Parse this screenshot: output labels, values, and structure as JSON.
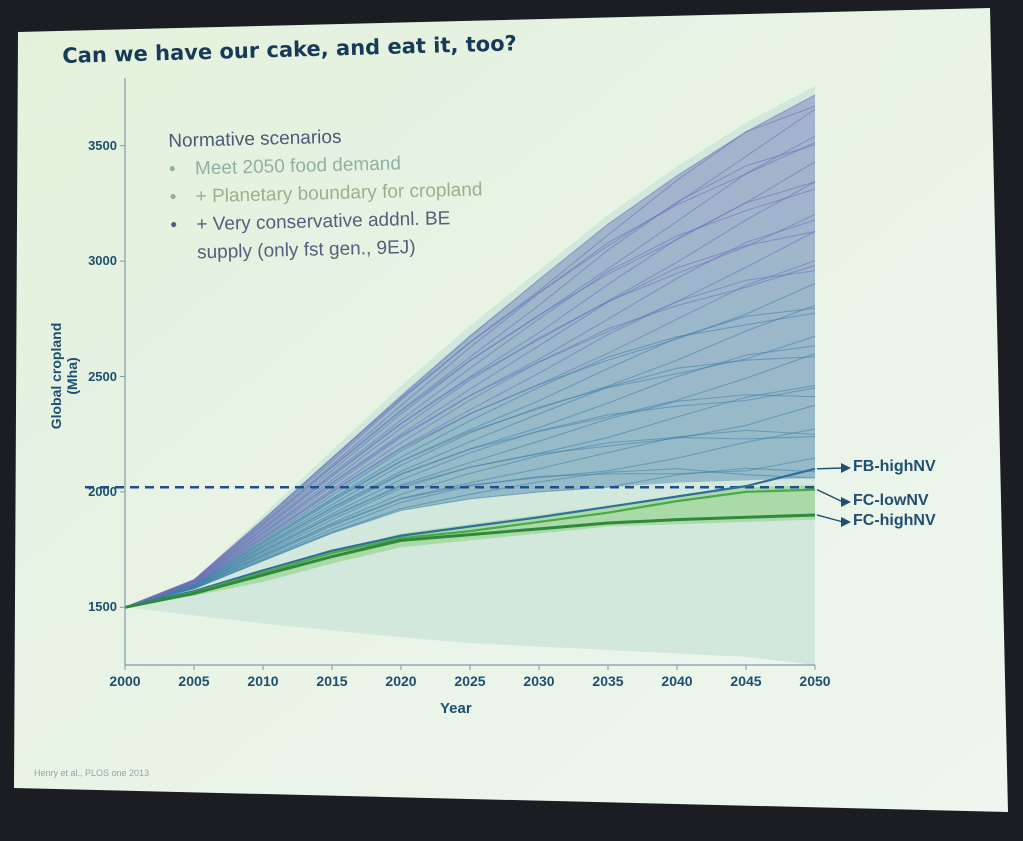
{
  "slide": {
    "title": "Can we have our cake, and eat it, too?",
    "citation": "Henry et al., PLOS one 2013"
  },
  "legend": {
    "heading": "Normative scenarios",
    "items": [
      {
        "bullet": "•",
        "text": "Meet 2050 food demand"
      },
      {
        "bullet": "•",
        "text": "+ Planetary boundary for cropland"
      },
      {
        "bullet": "•",
        "text": "+ Very conservative addnl. BE"
      }
    ],
    "continuation": "supply (only fst gen., 9EJ)"
  },
  "chart_data": {
    "type": "line",
    "xlabel": "Year",
    "ylabel": "Global cropland (Mha)",
    "xlim": [
      2000,
      2050
    ],
    "ylim": [
      1250,
      3750
    ],
    "x_ticks": [
      "2000",
      "2005",
      "2010",
      "2015",
      "2020",
      "2025",
      "2030",
      "2035",
      "2040",
      "2045",
      "2050"
    ],
    "y_ticks": [
      "1500",
      "2000",
      "2500",
      "3000",
      "3500"
    ],
    "boundary_line": {
      "y": 2020,
      "style": "dashed",
      "color": "#1f4f8a"
    },
    "envelope": {
      "color": "#cfe7dc",
      "x": [
        2000,
        2005,
        2010,
        2015,
        2020,
        2025,
        2030,
        2035,
        2040,
        2045,
        2050
      ],
      "upper": [
        1500,
        1620,
        1900,
        2180,
        2460,
        2720,
        2960,
        3200,
        3410,
        3600,
        3760
      ],
      "lower": [
        1500,
        1465,
        1430,
        1400,
        1370,
        1345,
        1330,
        1315,
        1300,
        1285,
        1250
      ]
    },
    "scenario_fan": {
      "color_low": "#3f7fa6",
      "color_high": "#6e6fb8",
      "x": [
        2000,
        2005,
        2010,
        2015,
        2020,
        2025,
        2030,
        2035,
        2040,
        2045,
        2050
      ],
      "upper": [
        1500,
        1620,
        1880,
        2150,
        2420,
        2680,
        2920,
        3160,
        3370,
        3560,
        3720
      ],
      "lower": [
        1500,
        1580,
        1700,
        1820,
        1920,
        1970,
        2000,
        2020,
        2040,
        2050,
        2060
      ]
    },
    "green_band": {
      "color": "#9fd69b",
      "x": [
        2000,
        2005,
        2010,
        2015,
        2020,
        2025,
        2030,
        2035,
        2040,
        2045,
        2050
      ],
      "upper": [
        1500,
        1565,
        1650,
        1740,
        1820,
        1860,
        1900,
        1940,
        1980,
        2020,
        2030
      ],
      "lower": [
        1500,
        1550,
        1610,
        1690,
        1760,
        1790,
        1820,
        1850,
        1860,
        1870,
        1880
      ]
    },
    "series": [
      {
        "name": "FB-highNV",
        "color": "#2f6f9a",
        "x": [
          2000,
          2005,
          2010,
          2015,
          2020,
          2025,
          2030,
          2035,
          2040,
          2045,
          2050
        ],
        "y": [
          1500,
          1570,
          1660,
          1745,
          1810,
          1850,
          1890,
          1935,
          1980,
          2025,
          2100
        ]
      },
      {
        "name": "FC-lowNV",
        "color": "#4aa84a",
        "x": [
          2000,
          2005,
          2010,
          2015,
          2020,
          2025,
          2030,
          2035,
          2040,
          2045,
          2050
        ],
        "y": [
          1500,
          1565,
          1650,
          1735,
          1800,
          1830,
          1870,
          1910,
          1960,
          2000,
          2010
        ]
      },
      {
        "name": "FC-highNV",
        "color": "#2e8a3a",
        "x": [
          2000,
          2005,
          2010,
          2015,
          2020,
          2025,
          2030,
          2035,
          2040,
          2045,
          2050
        ],
        "y": [
          1500,
          1560,
          1640,
          1720,
          1790,
          1815,
          1840,
          1865,
          1880,
          1890,
          1900
        ]
      }
    ]
  }
}
